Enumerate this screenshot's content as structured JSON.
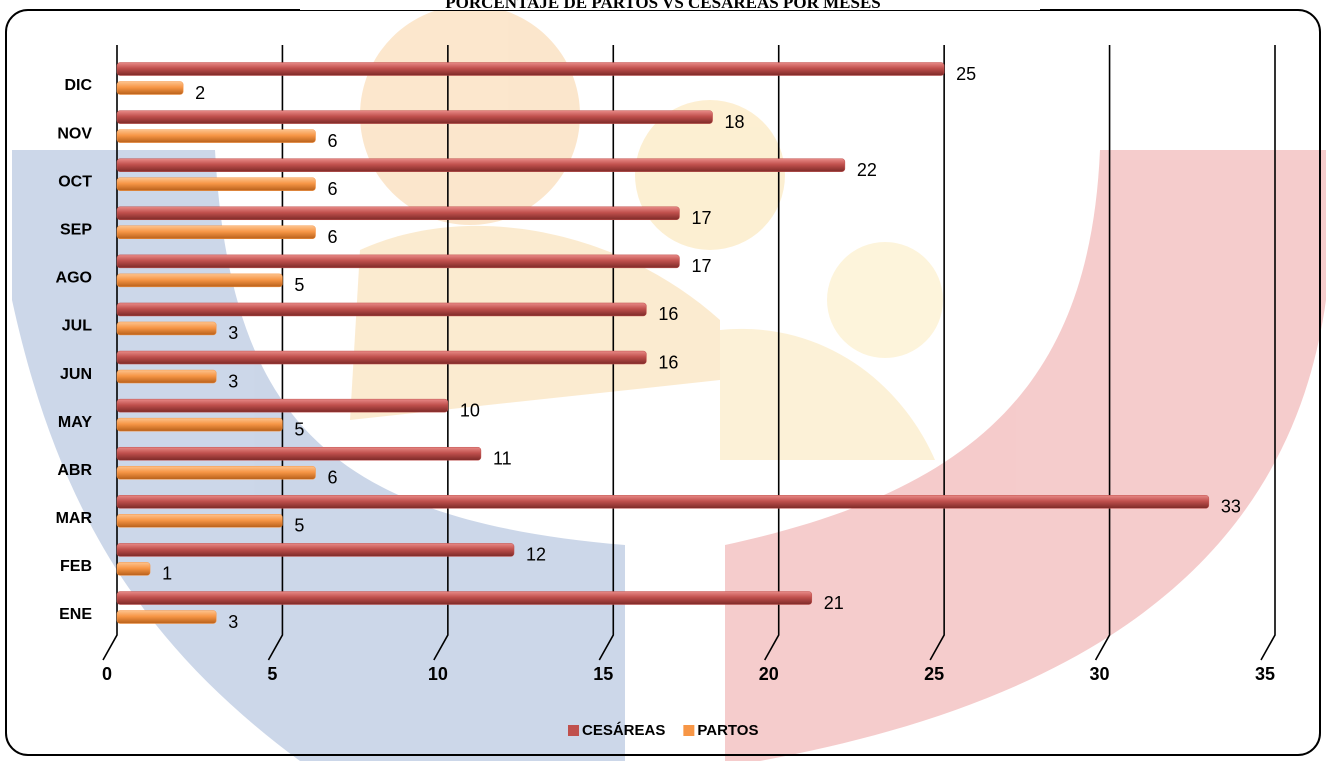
{
  "chart_data": {
    "type": "bar",
    "orientation": "horizontal",
    "title": "PORCENTAJE DE PARTOS VS CESÁREAS POR MESES",
    "categories": [
      "ENE",
      "FEB",
      "MAR",
      "ABR",
      "MAY",
      "JUN",
      "JUL",
      "AGO",
      "SEP",
      "OCT",
      "NOV",
      "DIC"
    ],
    "series": [
      {
        "name": "CESÁREAS",
        "color": "#c0504d",
        "values": [
          21,
          12,
          33,
          11,
          10,
          16,
          16,
          17,
          17,
          22,
          18,
          25
        ]
      },
      {
        "name": "PARTOS",
        "color": "#f79646",
        "values": [
          3,
          1,
          5,
          6,
          5,
          3,
          3,
          5,
          6,
          6,
          6,
          2
        ]
      }
    ],
    "xlim": [
      0,
      35
    ],
    "xticks": [
      0,
      5,
      10,
      15,
      20,
      25,
      30,
      35
    ],
    "grid": true,
    "legend": "bottom"
  }
}
